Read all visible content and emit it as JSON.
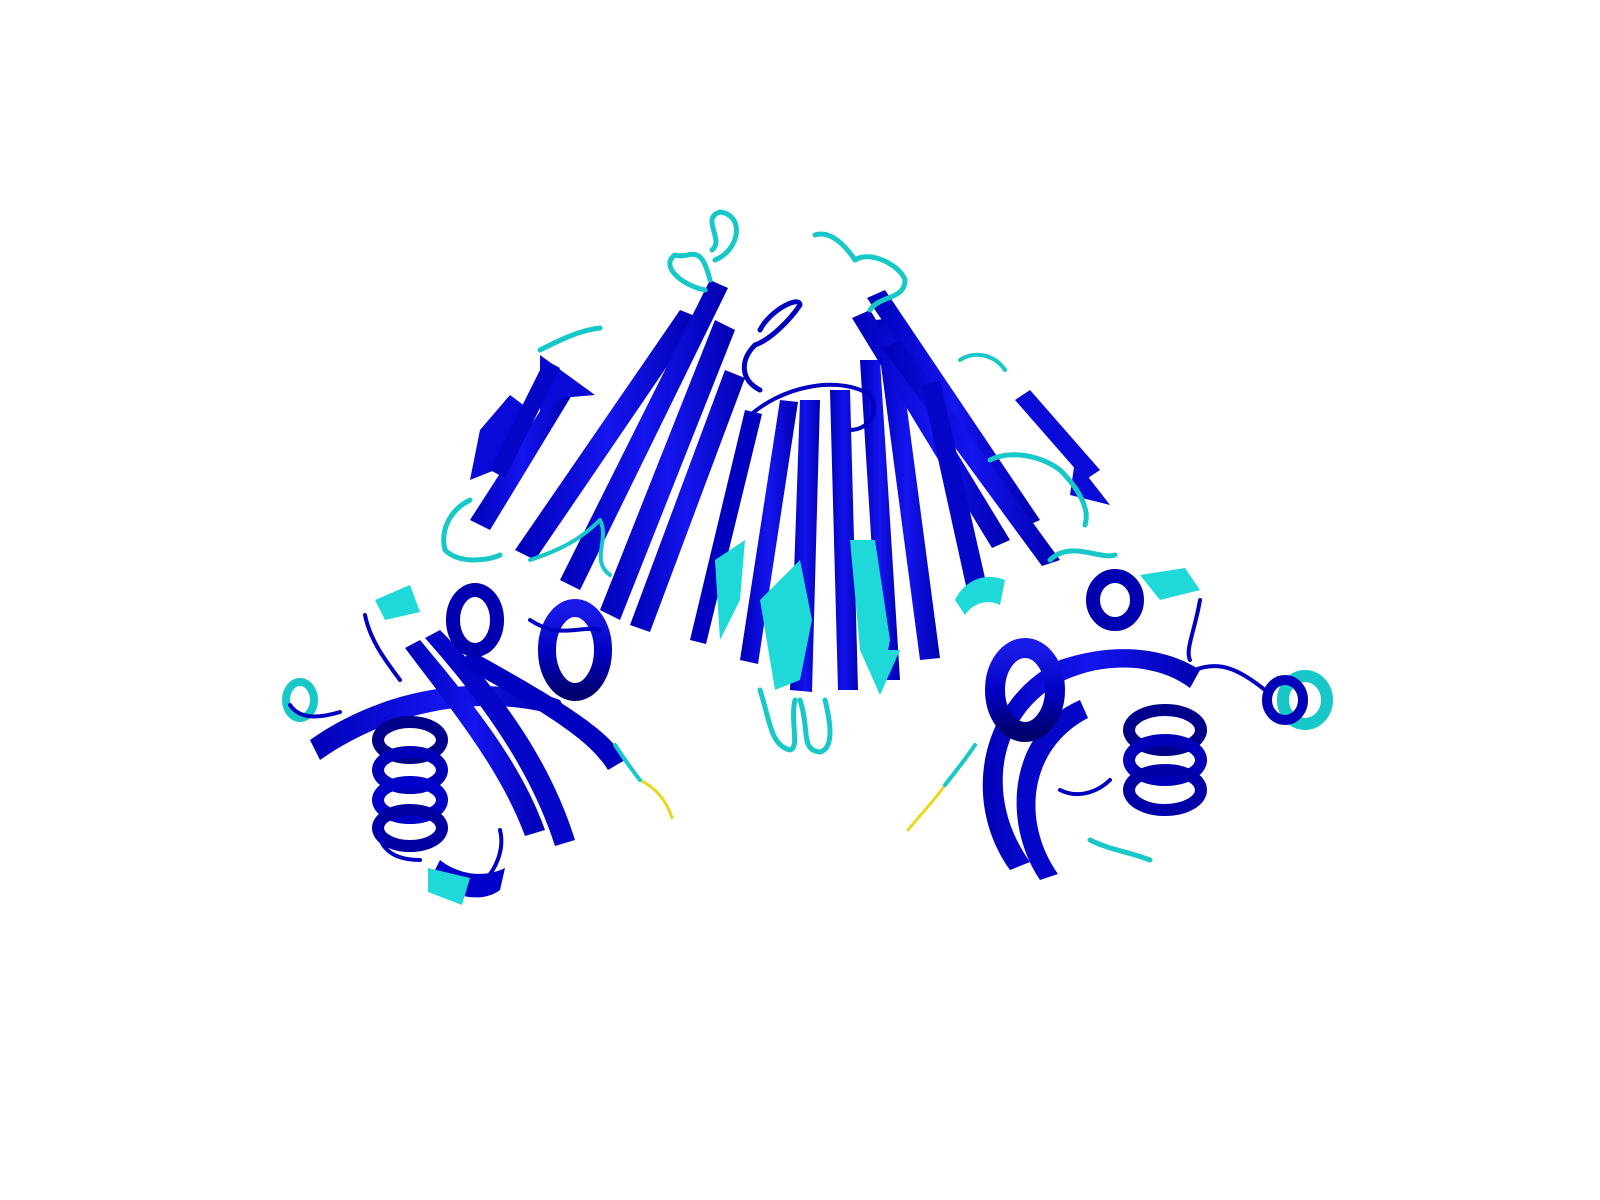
{
  "scene": {
    "background": "#ffffff",
    "representation": "cartoon",
    "colors": {
      "strand": "#0a0ad8",
      "helix": "#0000cc",
      "helix_dark": "#00008a",
      "loop_high": "#1a1ad0",
      "loop_mid": "#18c8c8",
      "region_mid": "#1fd9d9",
      "terminus": "#e8d820"
    }
  }
}
